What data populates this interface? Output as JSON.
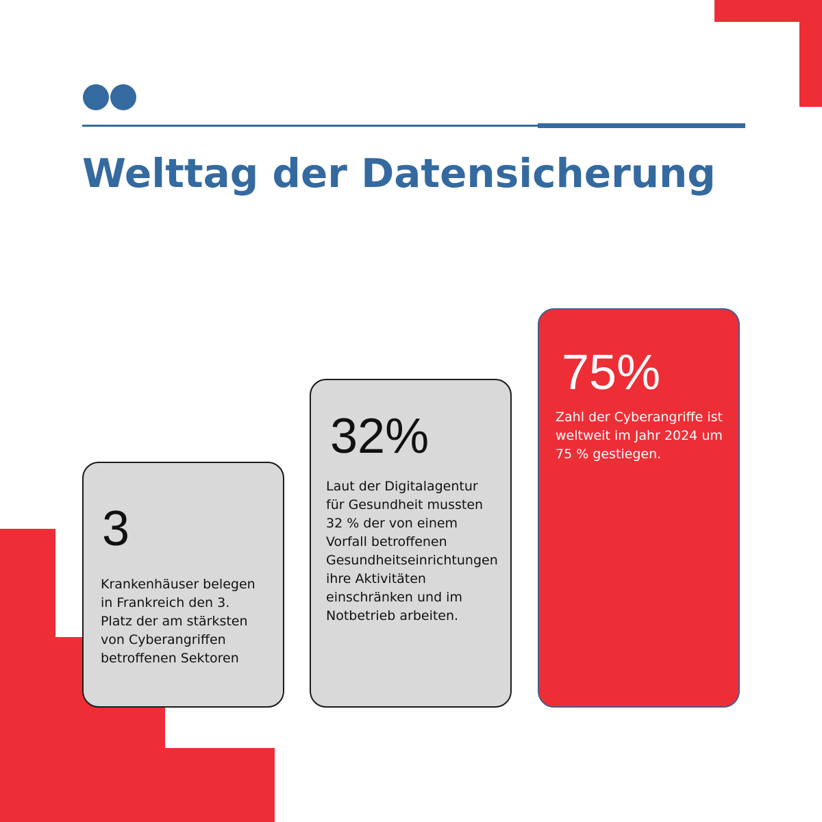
{
  "title": "Welttag der Datensicherung",
  "colors": {
    "accent_blue": "#346a9f",
    "accent_red": "#ee2e36",
    "card_gray": "#d9d9d9"
  },
  "stats": [
    {
      "value": "3",
      "description": "Krankenhäuser belegen in Frankreich den 3. Platz der am stärksten von Cyberangriffen betroffenen Sektoren"
    },
    {
      "value": "32%",
      "description": "Laut der Digitalagentur für Gesundheit mussten 32 % der von einem Vorfall betroffenen Gesundheitseinrichtungen ihre Aktivitäten einschränken und im Notbetrieb arbeiten."
    },
    {
      "value": "75%",
      "description": " Zahl der Cyberangriffe ist weltweit im Jahr 2024 um 75 % gestiegen."
    }
  ]
}
